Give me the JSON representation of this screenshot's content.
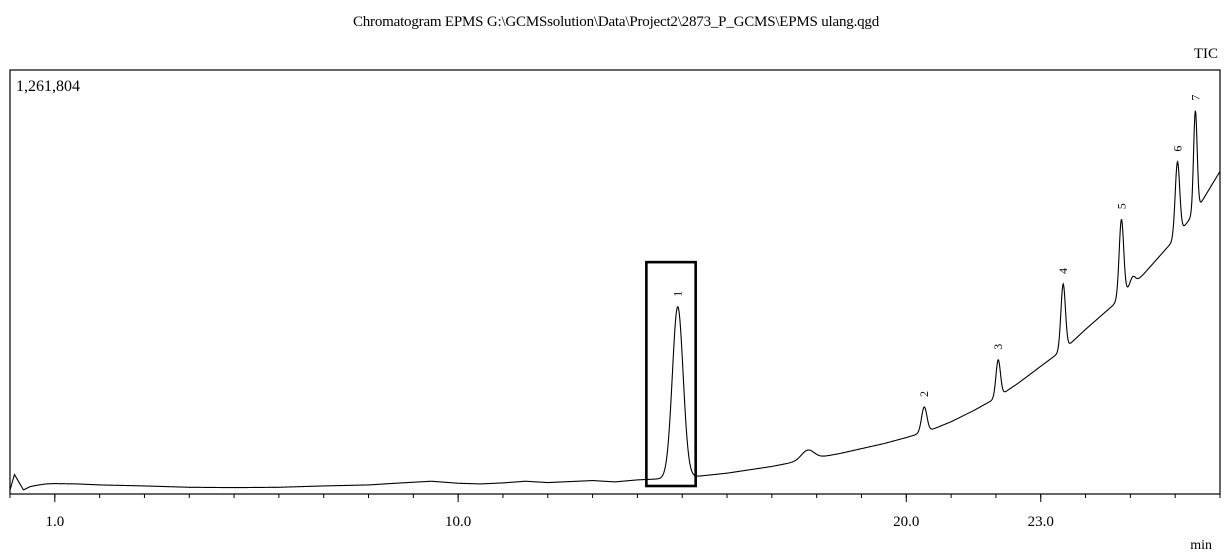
{
  "chart_data": {
    "type": "line",
    "title": "Chromatogram EPMS G:\\GCMSsolution\\Data\\Project2\\2873_P_GCMS\\EPMS ulang.qgd",
    "signal_label": "TIC",
    "ymax_label": "1,261,804",
    "xlabel": "min",
    "xlim": [
      0.0,
      27.0
    ],
    "ylim": [
      0,
      1261804
    ],
    "x_ticks": [
      {
        "value": 1.0,
        "label": "1.0"
      },
      {
        "value": 10.0,
        "label": "10.0"
      },
      {
        "value": 20.0,
        "label": "20.0"
      },
      {
        "value": 23.0,
        "label": "23.0"
      }
    ],
    "baseline": {
      "x": [
        0.0,
        0.1,
        0.2,
        0.3,
        0.45,
        0.6,
        0.8,
        1.0,
        1.5,
        2.0,
        3.0,
        4.0,
        5.0,
        6.0,
        7.0,
        8.0,
        8.6,
        9.0,
        9.4,
        10.0,
        10.5,
        11.0,
        11.5,
        12.0,
        13.0,
        13.5,
        14.0,
        15.0,
        15.5,
        16.0,
        16.5,
        17.0,
        17.5,
        18.0,
        18.5,
        19.0,
        19.5,
        20.0,
        20.5,
        21.0,
        21.5,
        22.0,
        22.5,
        23.0,
        23.3,
        23.6,
        24.0,
        24.3,
        24.6,
        25.0,
        25.3,
        25.6,
        26.0,
        26.5,
        27.0
      ],
      "y": [
        12000,
        58000,
        35000,
        12000,
        22000,
        26000,
        30000,
        31000,
        30000,
        27000,
        24000,
        20000,
        19000,
        20000,
        24000,
        27000,
        32000,
        35000,
        38000,
        32000,
        30000,
        33000,
        38000,
        34000,
        40000,
        36000,
        42000,
        48000,
        55000,
        62000,
        72000,
        82000,
        95000,
        108000,
        120000,
        135000,
        150000,
        168000,
        188000,
        215000,
        248000,
        285000,
        330000,
        380000,
        410000,
        440000,
        490000,
        525000,
        560000,
        615000,
        655000,
        700000,
        760000,
        850000,
        960000
      ]
    },
    "peaks": [
      {
        "label": "1",
        "rt": 14.9,
        "height": 510000,
        "width": 0.12
      },
      {
        "label": "",
        "rt": 17.8,
        "height": 28000,
        "width": 0.14
      },
      {
        "label": "2",
        "rt": 20.4,
        "height": 75000,
        "width": 0.06
      },
      {
        "label": "3",
        "rt": 22.05,
        "height": 110000,
        "width": 0.05
      },
      {
        "label": "4",
        "rt": 23.5,
        "height": 195000,
        "width": 0.05
      },
      {
        "label": "5",
        "rt": 24.8,
        "height": 230000,
        "width": 0.05
      },
      {
        "label": "",
        "rt": 25.05,
        "height": 25000,
        "width": 0.06
      },
      {
        "label": "6",
        "rt": 26.05,
        "height": 220000,
        "width": 0.05
      },
      {
        "label": "7",
        "rt": 26.45,
        "height": 300000,
        "width": 0.04
      }
    ],
    "highlight_box": {
      "x": [
        14.2,
        15.3
      ],
      "y": [
        0,
        690000
      ]
    },
    "legend": "none",
    "grid": false
  }
}
